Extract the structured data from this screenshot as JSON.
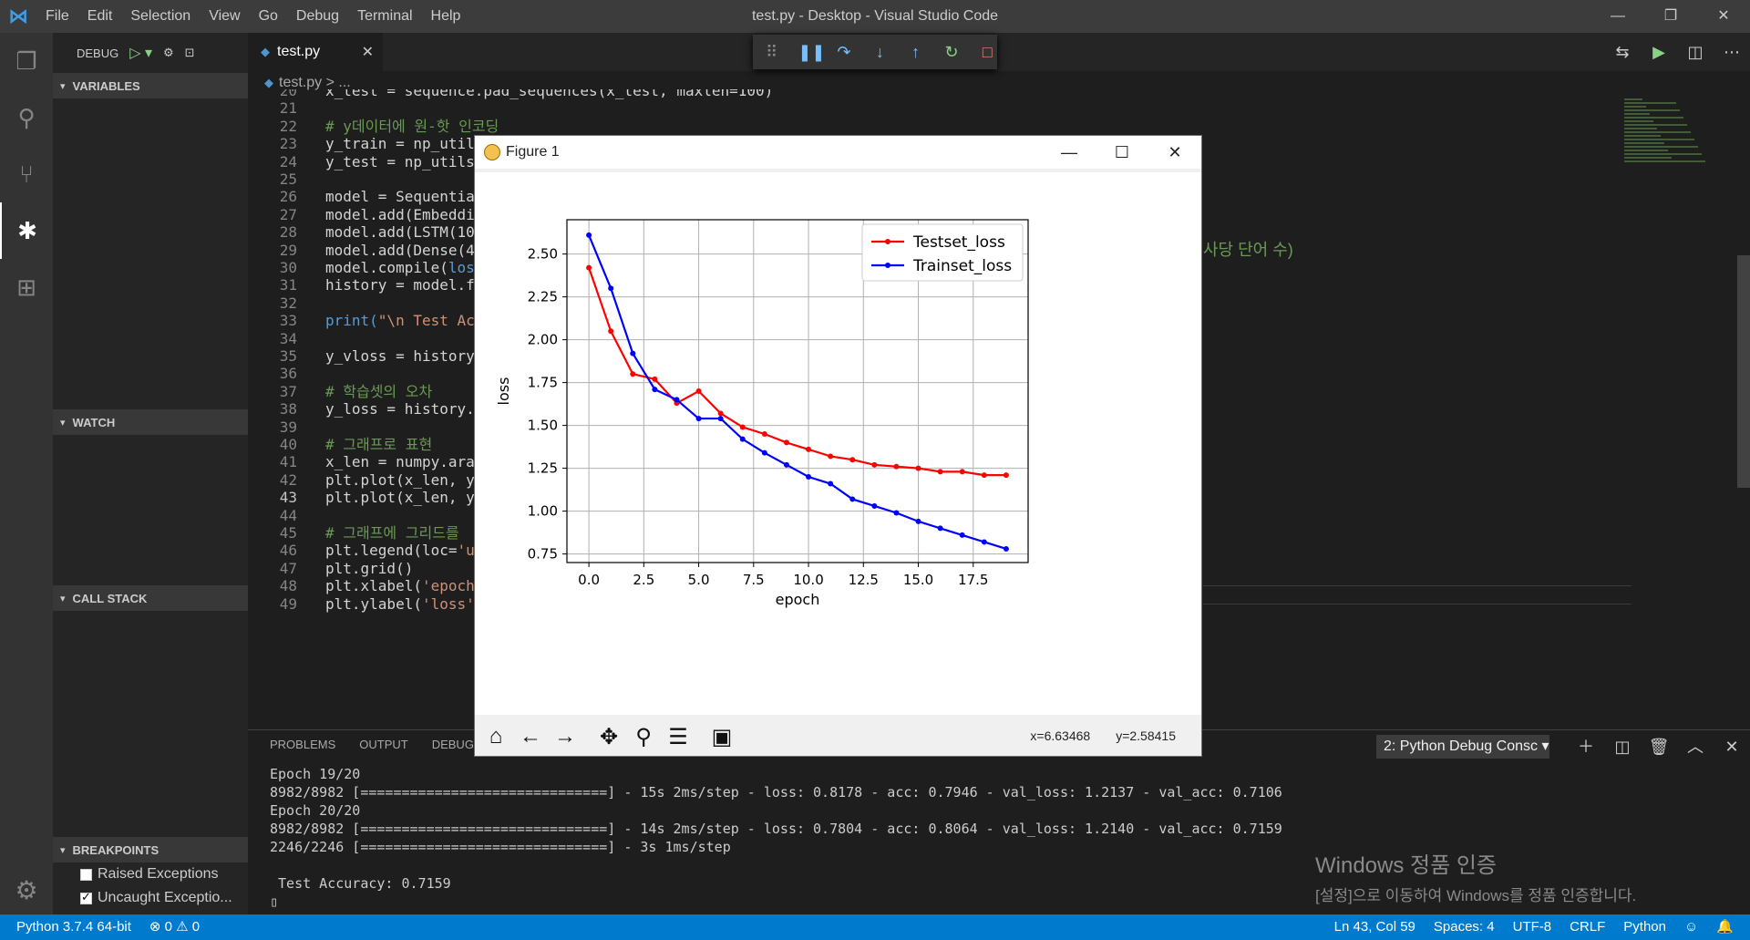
{
  "window": {
    "title": "test.py - Desktop - Visual Studio Code",
    "menu": [
      "File",
      "Edit",
      "Selection",
      "View",
      "Go",
      "Debug",
      "Terminal",
      "Help"
    ],
    "controls": {
      "minimize": "—",
      "restore": "❐",
      "close": "✕"
    }
  },
  "sidebar": {
    "debug_label": "DEBUG",
    "sections": {
      "variables": "VARIABLES",
      "watch": "WATCH",
      "call_stack": "CALL STACK",
      "breakpoints": "BREAKPOINTS"
    },
    "breakpoints": [
      {
        "label": "Raised Exceptions",
        "checked": false
      },
      {
        "label": "Uncaught Exceptio...",
        "checked": true
      }
    ]
  },
  "editor": {
    "tab": {
      "label": "test.py",
      "close": "✕"
    },
    "breadcrumb": {
      "file": "test.py",
      "rest": "> ..."
    },
    "current_line": 43,
    "lines": [
      {
        "n": "20",
        "parts": [
          {
            "t": "x_test = sequence.pad_sequences(x_test, maxlen=100)",
            "c": ""
          }
        ]
      },
      {
        "n": "21",
        "parts": [
          {
            "t": "",
            "c": ""
          }
        ]
      },
      {
        "n": "22",
        "parts": [
          {
            "t": "# y데이터에 원-핫 인코딩",
            "c": "cm"
          }
        ]
      },
      {
        "n": "23",
        "parts": [
          {
            "t": "y_train = np_util",
            "c": ""
          }
        ]
      },
      {
        "n": "24",
        "parts": [
          {
            "t": "y_test = np_utils",
            "c": ""
          }
        ]
      },
      {
        "n": "25",
        "parts": [
          {
            "t": "",
            "c": ""
          }
        ]
      },
      {
        "n": "26",
        "parts": [
          {
            "t": "model = Sequentia",
            "c": ""
          }
        ]
      },
      {
        "n": "27",
        "parts": [
          {
            "t": "model.add(Embeddi",
            "c": ""
          }
        ]
      },
      {
        "n": "28",
        "parts": [
          {
            "t": "model.add(LSTM(10",
            "c": ""
          }
        ]
      },
      {
        "n": "29",
        "parts": [
          {
            "t": "model.add(Dense(4",
            "c": ""
          }
        ]
      },
      {
        "n": "30",
        "parts": [
          {
            "t": "model.compile(",
            "c": ""
          },
          {
            "t": "los",
            "c": "bl"
          }
        ]
      },
      {
        "n": "31",
        "parts": [
          {
            "t": "history = model.f",
            "c": ""
          }
        ]
      },
      {
        "n": "32",
        "parts": [
          {
            "t": "",
            "c": ""
          }
        ]
      },
      {
        "n": "33",
        "parts": [
          {
            "t": "print(",
            "c": "bl"
          },
          {
            "t": "\"\\n Test Ac",
            "c": "st"
          }
        ]
      },
      {
        "n": "34",
        "parts": [
          {
            "t": "",
            "c": ""
          }
        ]
      },
      {
        "n": "35",
        "parts": [
          {
            "t": "y_vloss = history",
            "c": ""
          }
        ]
      },
      {
        "n": "36",
        "parts": [
          {
            "t": "",
            "c": ""
          }
        ]
      },
      {
        "n": "37",
        "parts": [
          {
            "t": "# 학습셋의 오차",
            "c": "cm"
          }
        ]
      },
      {
        "n": "38",
        "parts": [
          {
            "t": "y_loss = history.",
            "c": ""
          }
        ]
      },
      {
        "n": "39",
        "parts": [
          {
            "t": "",
            "c": ""
          }
        ]
      },
      {
        "n": "40",
        "parts": [
          {
            "t": "# 그래프로 표현",
            "c": "cm"
          }
        ]
      },
      {
        "n": "41",
        "parts": [
          {
            "t": "x_len = numpy.ara",
            "c": ""
          }
        ]
      },
      {
        "n": "42",
        "parts": [
          {
            "t": "plt.plot(x_len, y",
            "c": ""
          }
        ]
      },
      {
        "n": "43",
        "parts": [
          {
            "t": "plt.plot(x_len, y",
            "c": ""
          }
        ]
      },
      {
        "n": "44",
        "parts": [
          {
            "t": "",
            "c": ""
          }
        ]
      },
      {
        "n": "45",
        "parts": [
          {
            "t": "# 그래프에 그리드를",
            "c": "cm"
          }
        ]
      },
      {
        "n": "46",
        "parts": [
          {
            "t": "plt.legend(loc=",
            "c": ""
          },
          {
            "t": "'u",
            "c": "st"
          }
        ]
      },
      {
        "n": "47",
        "parts": [
          {
            "t": "plt.grid()",
            "c": ""
          }
        ]
      },
      {
        "n": "48",
        "parts": [
          {
            "t": "plt.xlabel(",
            "c": ""
          },
          {
            "t": "'epoch",
            "c": "st"
          }
        ]
      },
      {
        "n": "49",
        "parts": [
          {
            "t": "plt.ylabel(",
            "c": ""
          },
          {
            "t": "'loss'",
            "c": "st"
          }
        ]
      }
    ],
    "overflow_text": "사당 단어 수)"
  },
  "panel": {
    "tabs": [
      "PROBLEMS",
      "OUTPUT",
      "DEBUG C"
    ],
    "terminal_select": "2: Python Debug Consc ▾",
    "terminal_lines": [
      "Epoch 19/20",
      "8982/8982 [==============================] - 15s 2ms/step - loss: 0.8178 - acc: 0.7946 - val_loss: 1.2137 - val_acc: 0.7106",
      "Epoch 20/20",
      "8982/8982 [==============================] - 14s 2ms/step - loss: 0.7804 - acc: 0.8064 - val_loss: 1.2140 - val_acc: 0.7159",
      "2246/2246 [==============================] - 3s 1ms/step",
      "",
      " Test Accuracy: 0.7159",
      "▯"
    ],
    "watermark": {
      "line1": "Windows 정품 인증",
      "line2": "[설정]으로 이동하여 Windows를 정품 인증합니다."
    }
  },
  "statusbar": {
    "python": "Python 3.7.4 64-bit",
    "problems": "⊗ 0 ⚠ 0",
    "position": "Ln 43, Col 59",
    "spaces": "Spaces: 4",
    "encoding": "UTF-8",
    "eol": "CRLF",
    "language": "Python",
    "smiley": "☺",
    "bell": "🔔"
  },
  "figure": {
    "title": "Figure 1",
    "coords": {
      "x": "x=6.63468",
      "y": "y=2.58415"
    }
  },
  "chart_data": {
    "type": "line",
    "title": "",
    "xlabel": "epoch",
    "ylabel": "loss",
    "xlim": [
      -1,
      20
    ],
    "ylim": [
      0.7,
      2.7
    ],
    "xticks": [
      "0.0",
      "2.5",
      "5.0",
      "7.5",
      "10.0",
      "12.5",
      "15.0",
      "17.5"
    ],
    "xtick_values": [
      0,
      2.5,
      5,
      7.5,
      10,
      12.5,
      15,
      17.5
    ],
    "yticks": [
      "0.75",
      "1.00",
      "1.25",
      "1.50",
      "1.75",
      "2.00",
      "2.25",
      "2.50"
    ],
    "ytick_values": [
      0.75,
      1.0,
      1.25,
      1.5,
      1.75,
      2.0,
      2.25,
      2.5
    ],
    "grid": true,
    "legend_position": "top-right",
    "x": [
      0,
      1,
      2,
      3,
      4,
      5,
      6,
      7,
      8,
      9,
      10,
      11,
      12,
      13,
      14,
      15,
      16,
      17,
      18,
      19
    ],
    "series": [
      {
        "name": "Testset_loss",
        "color": "#ff0000",
        "values": [
          2.42,
          2.05,
          1.8,
          1.77,
          1.63,
          1.7,
          1.57,
          1.49,
          1.45,
          1.4,
          1.36,
          1.32,
          1.3,
          1.27,
          1.26,
          1.25,
          1.23,
          1.23,
          1.21,
          1.21
        ]
      },
      {
        "name": "Trainset_loss",
        "color": "#0000ff",
        "values": [
          2.61,
          2.3,
          1.92,
          1.71,
          1.65,
          1.54,
          1.54,
          1.42,
          1.34,
          1.27,
          1.2,
          1.16,
          1.07,
          1.03,
          0.99,
          0.94,
          0.9,
          0.86,
          0.82,
          0.78
        ]
      }
    ]
  }
}
